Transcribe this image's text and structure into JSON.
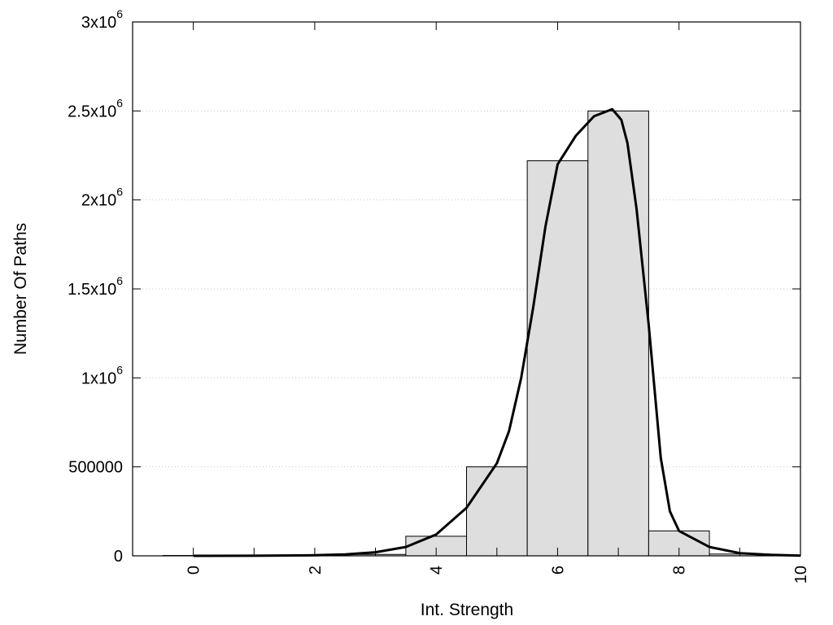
{
  "chart_data": {
    "type": "bar",
    "title": "",
    "xlabel": "Int. Strength",
    "ylabel": "Number Of Paths",
    "xlim": [
      -1,
      10
    ],
    "ylim": [
      0,
      3000000
    ],
    "grid": true,
    "x_ticks": [
      {
        "value": 0,
        "label": "0"
      },
      {
        "value": 2,
        "label": "2"
      },
      {
        "value": 4,
        "label": "4"
      },
      {
        "value": 6,
        "label": "6"
      },
      {
        "value": 8,
        "label": "8"
      },
      {
        "value": 10,
        "label": "10"
      }
    ],
    "y_ticks": [
      {
        "value": 0,
        "base": "0",
        "exp": ""
      },
      {
        "value": 500000,
        "base": "500000",
        "exp": ""
      },
      {
        "value": 1000000,
        "base": "1x10",
        "exp": "6"
      },
      {
        "value": 1500000,
        "base": "1.5x10",
        "exp": "6"
      },
      {
        "value": 2000000,
        "base": "2x10",
        "exp": "6"
      },
      {
        "value": 2500000,
        "base": "2.5x10",
        "exp": "6"
      },
      {
        "value": 3000000,
        "base": "3x10",
        "exp": "6"
      }
    ],
    "bars": {
      "centers": [
        0,
        1,
        2,
        3,
        4,
        5,
        6,
        7,
        8,
        9
      ],
      "width": 1,
      "values": [
        2000,
        2000,
        2000,
        8000,
        110000,
        500000,
        2220000,
        2500000,
        140000,
        10000
      ],
      "fill": "#dedede",
      "stroke": "#000000"
    },
    "curve": {
      "color": "#000000",
      "points": [
        [
          0,
          0
        ],
        [
          1,
          500
        ],
        [
          2,
          3000
        ],
        [
          2.5,
          8000
        ],
        [
          3,
          20000
        ],
        [
          3.5,
          50000
        ],
        [
          4,
          120000
        ],
        [
          4.5,
          270000
        ],
        [
          5,
          520000
        ],
        [
          5.2,
          700000
        ],
        [
          5.4,
          1000000
        ],
        [
          5.6,
          1400000
        ],
        [
          5.8,
          1850000
        ],
        [
          6,
          2200000
        ],
        [
          6.3,
          2360000
        ],
        [
          6.6,
          2470000
        ],
        [
          6.9,
          2510000
        ],
        [
          7.05,
          2450000
        ],
        [
          7.15,
          2320000
        ],
        [
          7.3,
          1950000
        ],
        [
          7.5,
          1300000
        ],
        [
          7.7,
          550000
        ],
        [
          7.85,
          250000
        ],
        [
          8,
          140000
        ],
        [
          8.5,
          50000
        ],
        [
          9,
          15000
        ],
        [
          9.5,
          6000
        ],
        [
          10,
          1000
        ]
      ]
    }
  }
}
